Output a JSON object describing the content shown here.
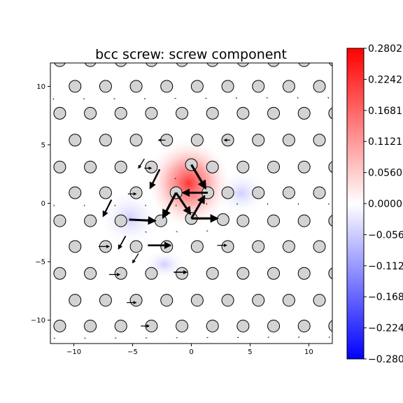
{
  "chart_data": {
    "type": "scatter",
    "title": "bcc screw: screw component",
    "xlabel": "",
    "ylabel": "",
    "xlim": [
      -12,
      12
    ],
    "ylim": [
      -12,
      12
    ],
    "x_ticks": [
      -10,
      -5,
      0,
      5,
      10
    ],
    "x_tick_labels": [
      "−10",
      "−5",
      "0",
      "5",
      "10"
    ],
    "y_ticks": [
      -10,
      -5,
      0,
      5,
      10
    ],
    "y_tick_labels": [
      "−10",
      "−5",
      "0",
      "5",
      "10"
    ],
    "grid": false,
    "colorbar": {
      "colormap": "bwr",
      "min": -0.2802,
      "max": 0.2802,
      "ticks": [
        0.2802,
        0.2242,
        0.1681,
        0.1121,
        0.056,
        0.0,
        -0.056,
        -0.1121,
        -0.1681,
        -0.2242,
        -0.2802
      ],
      "tick_labels": [
        "0.2802",
        "0.2242",
        "0.1681",
        "0.1121",
        "0.0560",
        "0.0000",
        "−0.056",
        "−0.112",
        "−0.168",
        "−0.224",
        "−0.280"
      ],
      "colors": {
        "low": "#0000ff",
        "mid": "#ffffff",
        "high": "#ff0000"
      }
    },
    "atom_lattice": {
      "rows_y": [
        12.2,
        10.0,
        7.7,
        5.4,
        3.1,
        0.9,
        -1.5,
        -3.7,
        -6.0,
        -8.3,
        -10.5
      ],
      "row_spacing_x": 2.6,
      "even_row_x_offset": -0.8,
      "odd_row_x_offset": 0.5,
      "marker_face": "#d3d3d3",
      "marker_edge": "#000000"
    },
    "core_atoms": [
      {
        "x": -1.3,
        "y": 0.9
      },
      {
        "x": 1.4,
        "y": 0.9
      },
      {
        "x": 0.0,
        "y": 3.3
      },
      {
        "x": -2.6,
        "y": -1.5
      },
      {
        "x": 0.0,
        "y": -1.3
      },
      {
        "x": 2.7,
        "y": -1.4
      }
    ],
    "arrows_strong": [
      {
        "x": 1.4,
        "y": 0.9,
        "dx": -2.1,
        "dy": 0.0
      },
      {
        "x": 0.0,
        "y": 3.3,
        "dx": 1.2,
        "dy": -2.0
      },
      {
        "x": -1.3,
        "y": 0.9,
        "dx": -1.1,
        "dy": -2.1
      },
      {
        "x": -1.3,
        "y": 0.9,
        "dx": 1.2,
        "dy": -1.8
      },
      {
        "x": 0.0,
        "y": -1.3,
        "dx": 1.1,
        "dy": 1.9
      },
      {
        "x": 0.0,
        "y": -1.3,
        "dx": 2.2,
        "dy": 0.0
      },
      {
        "x": -5.3,
        "y": -1.4,
        "dx": 2.2,
        "dy": -0.1
      },
      {
        "x": -2.7,
        "y": 2.9,
        "dx": -0.8,
        "dy": -1.6
      },
      {
        "x": -3.7,
        "y": -3.6,
        "dx": 1.9,
        "dy": 0.0
      },
      {
        "x": -6.8,
        "y": 0.3,
        "dx": -0.7,
        "dy": -1.4
      },
      {
        "x": -5.6,
        "y": -2.8,
        "dx": -0.6,
        "dy": -1.1
      },
      {
        "x": -4.5,
        "y": -4.3,
        "dx": -0.5,
        "dy": -0.8
      },
      {
        "x": -4.0,
        "y": 3.8,
        "dx": -0.5,
        "dy": -0.8
      },
      {
        "x": -7.9,
        "y": -3.7,
        "dx": 0.9,
        "dy": 0.0
      },
      {
        "x": -7.0,
        "y": -6.1,
        "dx": 0.9,
        "dy": 0.0
      },
      {
        "x": -5.5,
        "y": -8.5,
        "dx": 0.8,
        "dy": 0.0
      },
      {
        "x": -1.5,
        "y": -5.9,
        "dx": 1.1,
        "dy": 0.0
      },
      {
        "x": 2.2,
        "y": -3.6,
        "dx": 0.8,
        "dy": 0.0
      },
      {
        "x": -5.4,
        "y": 0.8,
        "dx": 0.7,
        "dy": 0.0
      },
      {
        "x": -4.0,
        "y": 3.0,
        "dx": 0.6,
        "dy": 0.0
      },
      {
        "x": -4.3,
        "y": -10.5,
        "dx": 0.7,
        "dy": 0.0
      },
      {
        "x": 3.3,
        "y": 5.4,
        "dx": -0.5,
        "dy": 0.0
      },
      {
        "x": -2.2,
        "y": 5.4,
        "dx": -0.6,
        "dy": 0.0
      }
    ],
    "arrows_weak_spacing": 1.3
  }
}
